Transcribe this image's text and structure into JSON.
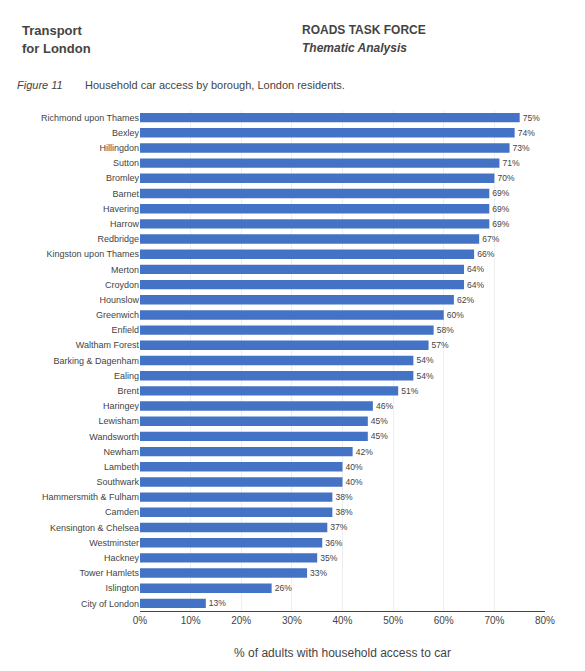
{
  "chart_data": {
    "type": "bar",
    "orientation": "horizontal",
    "title": "Household car access by borough, London residents.",
    "annotations": [
      "Transport",
      "for London",
      "ROADS TASK FORCE",
      "Thematic Analysis",
      "Figure 11"
    ],
    "xlabel": "% of adults with household access to car",
    "categories": [
      "Richmond upon Thames",
      "Bexley",
      "Hillingdon",
      "Sutton",
      "Bromley",
      "Barnet",
      "Havering",
      "Harrow",
      "Redbridge",
      "Kingston upon Thames",
      "Merton",
      "Croydon",
      "Hounslow",
      "Greenwich",
      "Enfield",
      "Waltham Forest",
      "Barking & Dagenham",
      "Ealing",
      "Brent",
      "Haringey",
      "Lewisham",
      "Wandsworth",
      "Newham",
      "Lambeth",
      "Southwark",
      "Hammersmith & Fulham",
      "Camden",
      "Kensington & Chelsea",
      "Westminster",
      "Hackney",
      "Tower Hamlets",
      "Islington",
      "City of London"
    ],
    "values": [
      75,
      74,
      73,
      71,
      70,
      69,
      69,
      69,
      67,
      66,
      64,
      64,
      62,
      60,
      58,
      57,
      54,
      54,
      51,
      46,
      45,
      45,
      42,
      40,
      40,
      38,
      38,
      37,
      36,
      35,
      33,
      26,
      13
    ],
    "value_labels": [
      "75%",
      "74%",
      "73%",
      "71%",
      "70%",
      "69%",
      "69%",
      "69%",
      "67%",
      "66%",
      "64%",
      "64%",
      "62%",
      "60%",
      "58%",
      "57%",
      "54%",
      "54%",
      "51%",
      "46%",
      "45%",
      "45%",
      "42%",
      "40%",
      "40%",
      "38%",
      "38%",
      "37%",
      "36%",
      "35%",
      "33%",
      "26%",
      "13%"
    ],
    "data_labels": true,
    "color": "#4472C4",
    "xlim": [
      0,
      80
    ],
    "xticks": [
      {
        "value": 0,
        "label": "0%"
      },
      {
        "value": 10,
        "label": "10%"
      },
      {
        "value": 20,
        "label": "20%"
      },
      {
        "value": 30,
        "label": "30%"
      },
      {
        "value": 40,
        "label": "40%"
      },
      {
        "value": 50,
        "label": "50%"
      },
      {
        "value": 60,
        "label": "60%"
      },
      {
        "value": 70,
        "label": "70%"
      },
      {
        "value": 80,
        "label": "80%"
      }
    ],
    "grid": true
  }
}
